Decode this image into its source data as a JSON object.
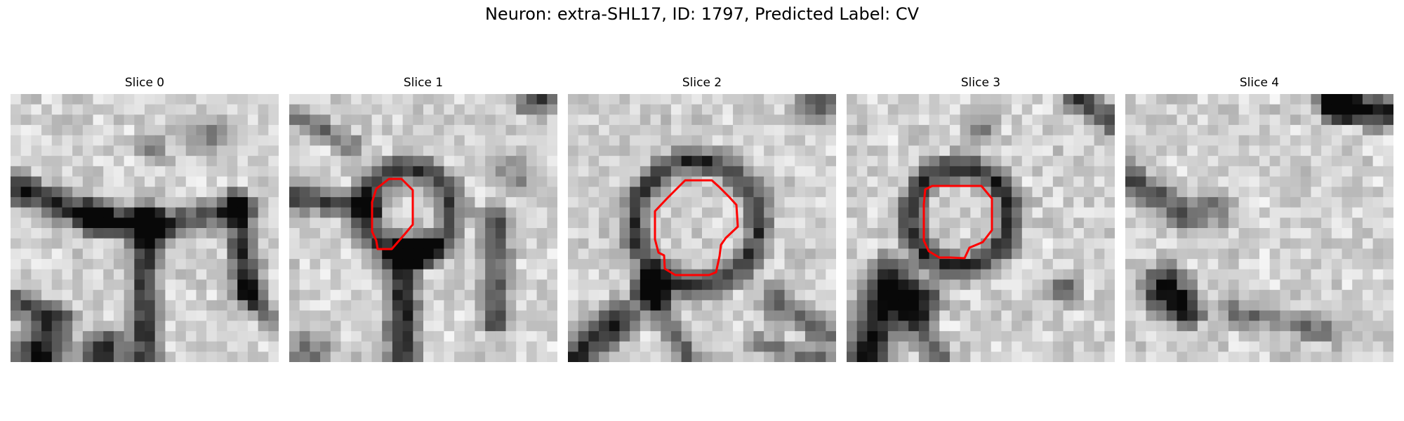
{
  "figure": {
    "title": "Neuron: extra-SHL17, ID: 1797, Predicted Label: CV"
  },
  "colors": {
    "background": "#ffffff",
    "contour": "#ff0000",
    "colormap": "grayscale"
  },
  "slices": [
    {
      "title": "Slice 0",
      "contour": false
    },
    {
      "title": "Slice 1",
      "contour": true
    },
    {
      "title": "Slice 2",
      "contour": true
    },
    {
      "title": "Slice 3",
      "contour": true
    },
    {
      "title": "Slice 4",
      "contour": false
    }
  ]
}
